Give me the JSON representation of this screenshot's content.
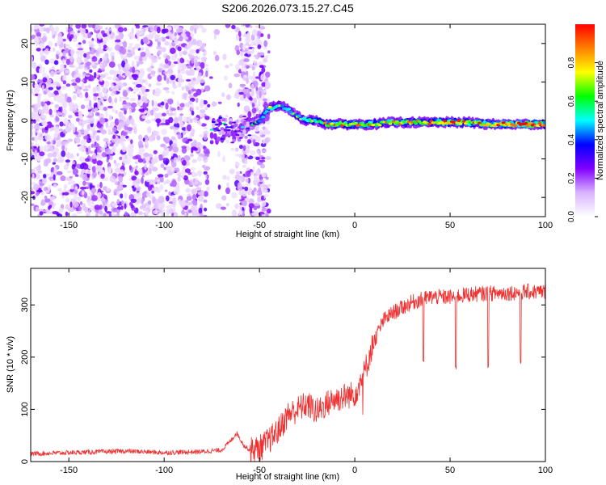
{
  "title": "S206.2026.073.15.27.C45",
  "chart_data": [
    {
      "type": "heatmap",
      "title": "S206.2026.073.15.27.C45",
      "xlabel": "Height of straight line (km)",
      "ylabel": "Frequency (Hz)",
      "xlim": [
        -170,
        100
      ],
      "ylim": [
        -25,
        25
      ],
      "xticks": [
        -150,
        -100,
        -50,
        0,
        50,
        100
      ],
      "yticks": [
        -20,
        -10,
        0,
        10,
        20
      ],
      "colorbar": {
        "label": "Normalized spectral amplitude",
        "range": [
          0,
          1
        ],
        "ticks": [
          "0.0",
          "0.2",
          "0.4",
          "0.6",
          "0.8"
        ],
        "colors": [
          "#ffffff",
          "#d9b3ff",
          "#8000ff",
          "#0000ff",
          "#00ffff",
          "#00ff00",
          "#ffff00",
          "#ff8000",
          "#ff0000"
        ]
      },
      "noise_region": {
        "x_from": -170,
        "x_to": -45,
        "gap_from": -77,
        "gap_to": -62,
        "amplitude": [
          0.05,
          0.3
        ]
      },
      "ridge": {
        "x": [
          -75,
          -70,
          -65,
          -60,
          -55,
          -50,
          -45,
          -40,
          -35,
          -30,
          -25,
          -20,
          -15,
          -10,
          -5,
          0,
          10,
          20,
          30,
          40,
          50,
          60,
          70,
          80,
          90,
          100
        ],
        "freq": [
          -3,
          -2,
          -3,
          -2,
          -1,
          0,
          3,
          4,
          3,
          1,
          0,
          0,
          -1,
          -1,
          -1,
          -1,
          -1,
          -0.5,
          -0.5,
          -0.5,
          -0.5,
          -0.5,
          -1,
          -1,
          -1,
          -1
        ],
        "amplitude": [
          0.3,
          0.35,
          0.3,
          0.25,
          0.3,
          0.45,
          0.5,
          0.5,
          0.45,
          0.45,
          0.5,
          0.55,
          0.65,
          0.7,
          0.7,
          0.65,
          0.7,
          0.65,
          0.65,
          0.7,
          0.75,
          0.7,
          0.75,
          0.8,
          0.85,
          0.85
        ]
      }
    },
    {
      "type": "line",
      "xlabel": "Height of straight line (km)",
      "ylabel": "SNR (10 * v/v)",
      "xlim": [
        -170,
        100
      ],
      "ylim": [
        0,
        370
      ],
      "xticks": [
        -150,
        -100,
        -50,
        0,
        50,
        100
      ],
      "yticks": [
        0,
        100,
        200,
        300
      ],
      "series": [
        {
          "name": "SNR",
          "color": "#ee3030",
          "x": [
            -170,
            -150,
            -120,
            -100,
            -80,
            -70,
            -65,
            -62,
            -58,
            -55,
            -50,
            -45,
            -40,
            -35,
            -30,
            -25,
            -20,
            -15,
            -10,
            -5,
            0,
            5,
            10,
            15,
            20,
            25,
            30,
            35,
            40,
            50,
            60,
            70,
            80,
            90,
            100
          ],
          "y": [
            15,
            17,
            20,
            17,
            19,
            22,
            40,
            55,
            30,
            22,
            25,
            40,
            60,
            90,
            100,
            110,
            95,
            110,
            120,
            125,
            130,
            170,
            230,
            270,
            285,
            295,
            305,
            310,
            315,
            315,
            320,
            322,
            323,
            325,
            325
          ],
          "dips": [
            {
              "x": 36,
              "y": 190
            },
            {
              "x": 53,
              "y": 175
            },
            {
              "x": 70,
              "y": 180
            },
            {
              "x": 87,
              "y": 185
            }
          ]
        }
      ]
    }
  ]
}
